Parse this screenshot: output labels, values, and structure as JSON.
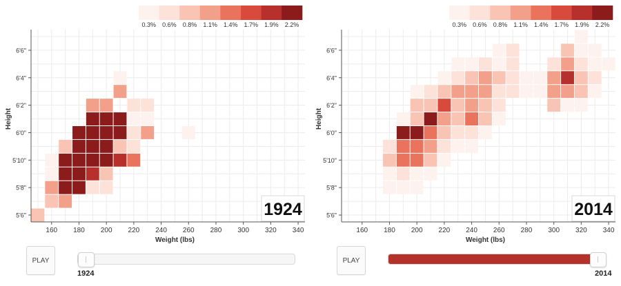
{
  "legend": {
    "labels": [
      "0.3%",
      "0.6%",
      "0.8%",
      "1.1%",
      "1.4%",
      "1.7%",
      "1.9%",
      "2.2%"
    ],
    "colors": [
      "#fef2ef",
      "#fde2da",
      "#f9c4b4",
      "#f3a08a",
      "#e9735c",
      "#d84a3b",
      "#b7302b",
      "#8c1b1b"
    ]
  },
  "play_label": "PLAY",
  "panels": [
    {
      "year_label": "1924",
      "slider": {
        "value": 1924,
        "min": 1924,
        "max": 2014,
        "left_label": "1924",
        "right_label": ""
      }
    },
    {
      "year_label": "2014",
      "slider": {
        "value": 2014,
        "min": 1924,
        "max": 2014,
        "left_label": "",
        "right_label": "2014"
      }
    }
  ],
  "chart_data": [
    {
      "type": "heatmap",
      "title": "1924",
      "xlabel": "Weight (lbs)",
      "ylabel": "Height",
      "xlim": [
        145,
        345
      ],
      "ylim": [
        65.5,
        79.5
      ],
      "x_ticks": [
        160,
        180,
        200,
        220,
        240,
        260,
        280,
        300,
        320,
        340
      ],
      "y_ticks": [
        {
          "value": 66,
          "label": "5'6\""
        },
        {
          "value": 68,
          "label": "5'8\""
        },
        {
          "value": 70,
          "label": "5'10\""
        },
        {
          "value": 72,
          "label": "6'0\""
        },
        {
          "value": 74,
          "label": "6'2\""
        },
        {
          "value": 76,
          "label": "6'4\""
        },
        {
          "value": 78,
          "label": "6'6\""
        }
      ],
      "cell_width_lbs": 10,
      "cell_height_in": 1,
      "color_scale_levels": [
        "0.3%",
        "0.6%",
        "0.8%",
        "1.1%",
        "1.4%",
        "1.7%",
        "1.9%",
        "2.2%"
      ],
      "cells": [
        {
          "weight": 150,
          "height": 66,
          "level": 3
        },
        {
          "weight": 160,
          "height": 67,
          "level": 3
        },
        {
          "weight": 170,
          "height": 67,
          "level": 4
        },
        {
          "weight": 160,
          "height": 68,
          "level": 4
        },
        {
          "weight": 170,
          "height": 68,
          "level": 8
        },
        {
          "weight": 180,
          "height": 68,
          "level": 8
        },
        {
          "weight": 190,
          "height": 68,
          "level": 2
        },
        {
          "weight": 200,
          "height": 68,
          "level": 2
        },
        {
          "weight": 160,
          "height": 69,
          "level": 1
        },
        {
          "weight": 170,
          "height": 69,
          "level": 8
        },
        {
          "weight": 180,
          "height": 69,
          "level": 8
        },
        {
          "weight": 190,
          "height": 69,
          "level": 7
        },
        {
          "weight": 200,
          "height": 69,
          "level": 3
        },
        {
          "weight": 160,
          "height": 70,
          "level": 1
        },
        {
          "weight": 170,
          "height": 70,
          "level": 8
        },
        {
          "weight": 180,
          "height": 70,
          "level": 8
        },
        {
          "weight": 190,
          "height": 70,
          "level": 8
        },
        {
          "weight": 200,
          "height": 70,
          "level": 8
        },
        {
          "weight": 210,
          "height": 70,
          "level": 7
        },
        {
          "weight": 220,
          "height": 70,
          "level": 5
        },
        {
          "weight": 170,
          "height": 71,
          "level": 3
        },
        {
          "weight": 180,
          "height": 71,
          "level": 8
        },
        {
          "weight": 190,
          "height": 71,
          "level": 8
        },
        {
          "weight": 200,
          "height": 71,
          "level": 8
        },
        {
          "weight": 210,
          "height": 71,
          "level": 3
        },
        {
          "weight": 220,
          "height": 71,
          "level": 2
        },
        {
          "weight": 180,
          "height": 72,
          "level": 8
        },
        {
          "weight": 190,
          "height": 72,
          "level": 8
        },
        {
          "weight": 200,
          "height": 72,
          "level": 8
        },
        {
          "weight": 210,
          "height": 72,
          "level": 8
        },
        {
          "weight": 220,
          "height": 72,
          "level": 2
        },
        {
          "weight": 230,
          "height": 72,
          "level": 4
        },
        {
          "weight": 260,
          "height": 72,
          "level": 1
        },
        {
          "weight": 190,
          "height": 73,
          "level": 8
        },
        {
          "weight": 200,
          "height": 73,
          "level": 8
        },
        {
          "weight": 210,
          "height": 73,
          "level": 8
        },
        {
          "weight": 220,
          "height": 73,
          "level": 1
        },
        {
          "weight": 230,
          "height": 73,
          "level": 1
        },
        {
          "weight": 190,
          "height": 74,
          "level": 4
        },
        {
          "weight": 200,
          "height": 74,
          "level": 4
        },
        {
          "weight": 220,
          "height": 74,
          "level": 2
        },
        {
          "weight": 230,
          "height": 74,
          "level": 2
        },
        {
          "weight": 210,
          "height": 75,
          "level": 4
        },
        {
          "weight": 210,
          "height": 76,
          "level": 1
        }
      ]
    },
    {
      "type": "heatmap",
      "title": "2014",
      "xlabel": "Weight (lbs)",
      "ylabel": "Height",
      "xlim": [
        145,
        345
      ],
      "ylim": [
        65.5,
        79.5
      ],
      "x_ticks": [
        160,
        180,
        200,
        220,
        240,
        260,
        280,
        300,
        320,
        340
      ],
      "y_ticks": [
        {
          "value": 66,
          "label": "5'6\""
        },
        {
          "value": 68,
          "label": "5'8\""
        },
        {
          "value": 70,
          "label": "5'10\""
        },
        {
          "value": 72,
          "label": "6'0\""
        },
        {
          "value": 74,
          "label": "6'2\""
        },
        {
          "value": 76,
          "label": "6'4\""
        },
        {
          "value": 78,
          "label": "6'6\""
        }
      ],
      "cell_width_lbs": 10,
      "cell_height_in": 1,
      "color_scale_levels": [
        "0.3%",
        "0.6%",
        "0.8%",
        "1.1%",
        "1.4%",
        "1.7%",
        "1.9%",
        "2.2%"
      ],
      "cells": [
        {
          "weight": 180,
          "height": 68,
          "level": 1
        },
        {
          "weight": 190,
          "height": 68,
          "level": 1
        },
        {
          "weight": 200,
          "height": 68,
          "level": 1
        },
        {
          "weight": 180,
          "height": 69,
          "level": 1
        },
        {
          "weight": 190,
          "height": 69,
          "level": 2
        },
        {
          "weight": 200,
          "height": 69,
          "level": 1
        },
        {
          "weight": 210,
          "height": 69,
          "level": 1
        },
        {
          "weight": 180,
          "height": 70,
          "level": 3
        },
        {
          "weight": 190,
          "height": 70,
          "level": 5
        },
        {
          "weight": 200,
          "height": 70,
          "level": 5
        },
        {
          "weight": 210,
          "height": 70,
          "level": 3
        },
        {
          "weight": 220,
          "height": 70,
          "level": 1
        },
        {
          "weight": 180,
          "height": 71,
          "level": 2
        },
        {
          "weight": 190,
          "height": 71,
          "level": 5
        },
        {
          "weight": 200,
          "height": 71,
          "level": 5
        },
        {
          "weight": 210,
          "height": 71,
          "level": 4
        },
        {
          "weight": 220,
          "height": 71,
          "level": 2
        },
        {
          "weight": 230,
          "height": 71,
          "level": 1
        },
        {
          "weight": 240,
          "height": 71,
          "level": 1
        },
        {
          "weight": 190,
          "height": 72,
          "level": 8
        },
        {
          "weight": 200,
          "height": 72,
          "level": 8
        },
        {
          "weight": 210,
          "height": 72,
          "level": 5
        },
        {
          "weight": 220,
          "height": 72,
          "level": 3
        },
        {
          "weight": 230,
          "height": 72,
          "level": 2
        },
        {
          "weight": 240,
          "height": 72,
          "level": 2
        },
        {
          "weight": 250,
          "height": 72,
          "level": 1
        },
        {
          "weight": 190,
          "height": 73,
          "level": 1
        },
        {
          "weight": 200,
          "height": 73,
          "level": 3
        },
        {
          "weight": 210,
          "height": 73,
          "level": 8
        },
        {
          "weight": 220,
          "height": 73,
          "level": 4
        },
        {
          "weight": 230,
          "height": 73,
          "level": 3
        },
        {
          "weight": 240,
          "height": 73,
          "level": 5
        },
        {
          "weight": 250,
          "height": 73,
          "level": 3
        },
        {
          "weight": 260,
          "height": 73,
          "level": 1
        },
        {
          "weight": 200,
          "height": 74,
          "level": 3
        },
        {
          "weight": 210,
          "height": 74,
          "level": 3
        },
        {
          "weight": 220,
          "height": 74,
          "level": 6
        },
        {
          "weight": 230,
          "height": 74,
          "level": 3
        },
        {
          "weight": 240,
          "height": 74,
          "level": 4
        },
        {
          "weight": 250,
          "height": 74,
          "level": 3
        },
        {
          "weight": 260,
          "height": 74,
          "level": 2
        },
        {
          "weight": 300,
          "height": 74,
          "level": 3
        },
        {
          "weight": 310,
          "height": 74,
          "level": 1
        },
        {
          "weight": 320,
          "height": 74,
          "level": 1
        },
        {
          "weight": 200,
          "height": 75,
          "level": 1
        },
        {
          "weight": 210,
          "height": 75,
          "level": 2
        },
        {
          "weight": 220,
          "height": 75,
          "level": 3
        },
        {
          "weight": 230,
          "height": 75,
          "level": 4
        },
        {
          "weight": 240,
          "height": 75,
          "level": 4
        },
        {
          "weight": 250,
          "height": 75,
          "level": 4
        },
        {
          "weight": 260,
          "height": 75,
          "level": 2
        },
        {
          "weight": 270,
          "height": 75,
          "level": 2
        },
        {
          "weight": 280,
          "height": 75,
          "level": 1
        },
        {
          "weight": 290,
          "height": 75,
          "level": 1
        },
        {
          "weight": 300,
          "height": 75,
          "level": 4
        },
        {
          "weight": 310,
          "height": 75,
          "level": 4
        },
        {
          "weight": 320,
          "height": 75,
          "level": 3
        },
        {
          "weight": 330,
          "height": 75,
          "level": 1
        },
        {
          "weight": 220,
          "height": 76,
          "level": 1
        },
        {
          "weight": 230,
          "height": 76,
          "level": 2
        },
        {
          "weight": 240,
          "height": 76,
          "level": 3
        },
        {
          "weight": 250,
          "height": 76,
          "level": 4
        },
        {
          "weight": 260,
          "height": 76,
          "level": 3
        },
        {
          "weight": 270,
          "height": 76,
          "level": 2
        },
        {
          "weight": 280,
          "height": 76,
          "level": 1
        },
        {
          "weight": 290,
          "height": 76,
          "level": 1
        },
        {
          "weight": 300,
          "height": 76,
          "level": 4
        },
        {
          "weight": 310,
          "height": 76,
          "level": 7
        },
        {
          "weight": 320,
          "height": 76,
          "level": 3
        },
        {
          "weight": 330,
          "height": 76,
          "level": 2
        },
        {
          "weight": 230,
          "height": 77,
          "level": 1
        },
        {
          "weight": 240,
          "height": 77,
          "level": 1
        },
        {
          "weight": 250,
          "height": 77,
          "level": 2
        },
        {
          "weight": 260,
          "height": 77,
          "level": 1
        },
        {
          "weight": 270,
          "height": 77,
          "level": 2
        },
        {
          "weight": 300,
          "height": 77,
          "level": 2
        },
        {
          "weight": 310,
          "height": 77,
          "level": 4
        },
        {
          "weight": 320,
          "height": 77,
          "level": 2
        },
        {
          "weight": 330,
          "height": 77,
          "level": 1
        },
        {
          "weight": 340,
          "height": 77,
          "level": 1
        },
        {
          "weight": 260,
          "height": 78,
          "level": 1
        },
        {
          "weight": 270,
          "height": 78,
          "level": 2
        },
        {
          "weight": 310,
          "height": 78,
          "level": 3
        },
        {
          "weight": 320,
          "height": 78,
          "level": 1
        },
        {
          "weight": 330,
          "height": 78,
          "level": 1
        },
        {
          "weight": 320,
          "height": 79,
          "level": 1
        }
      ]
    }
  ]
}
